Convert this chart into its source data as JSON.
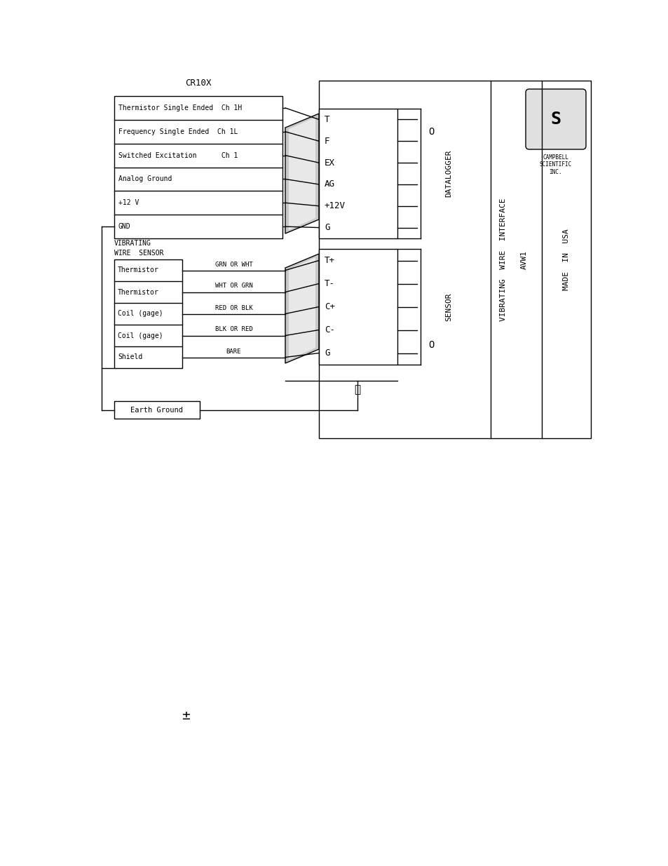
{
  "bg_color": "#ffffff",
  "line_color": "#000000",
  "title_cr10x": "CR10X",
  "cr10x_rows": [
    "Thermistor Single Ended  Ch 1H",
    "Frequency Single Ended  Ch 1L",
    "Switched Excitation      Ch 1",
    "Analog Ground",
    "+12 V",
    "GND"
  ],
  "vws_rows": [
    "Thermistor",
    "Thermistor",
    "Coil (gage)",
    "Coil (gage)",
    "Shield"
  ],
  "vws_wire_labels": [
    "GRN OR WHT",
    "WHT OR GRN",
    "RED OR BLK",
    "BLK OR RED",
    "BARE"
  ],
  "datalogger_labels": [
    "T",
    "F",
    "EX",
    "AG",
    "+12V",
    "G"
  ],
  "sensor_labels": [
    "T+",
    "T-",
    "C+",
    "C-",
    "G"
  ],
  "avw1_text": "AVW1",
  "vibrating_wire_interface": "VIBRATING  WIRE  INTERFACE",
  "datalogger_text": "DATALOGGER",
  "sensor_text": "SENSOR",
  "made_in_usa": "MADE  IN  USA",
  "vws_header_1": "VIBRATING",
  "vws_header_2": "WIRE  SENSOR",
  "earth_ground_label": "Earth Ground",
  "campbell_lines": [
    "CAMPBELL",
    "SCIENTIFIC",
    "INC."
  ],
  "pm_symbol": "±"
}
